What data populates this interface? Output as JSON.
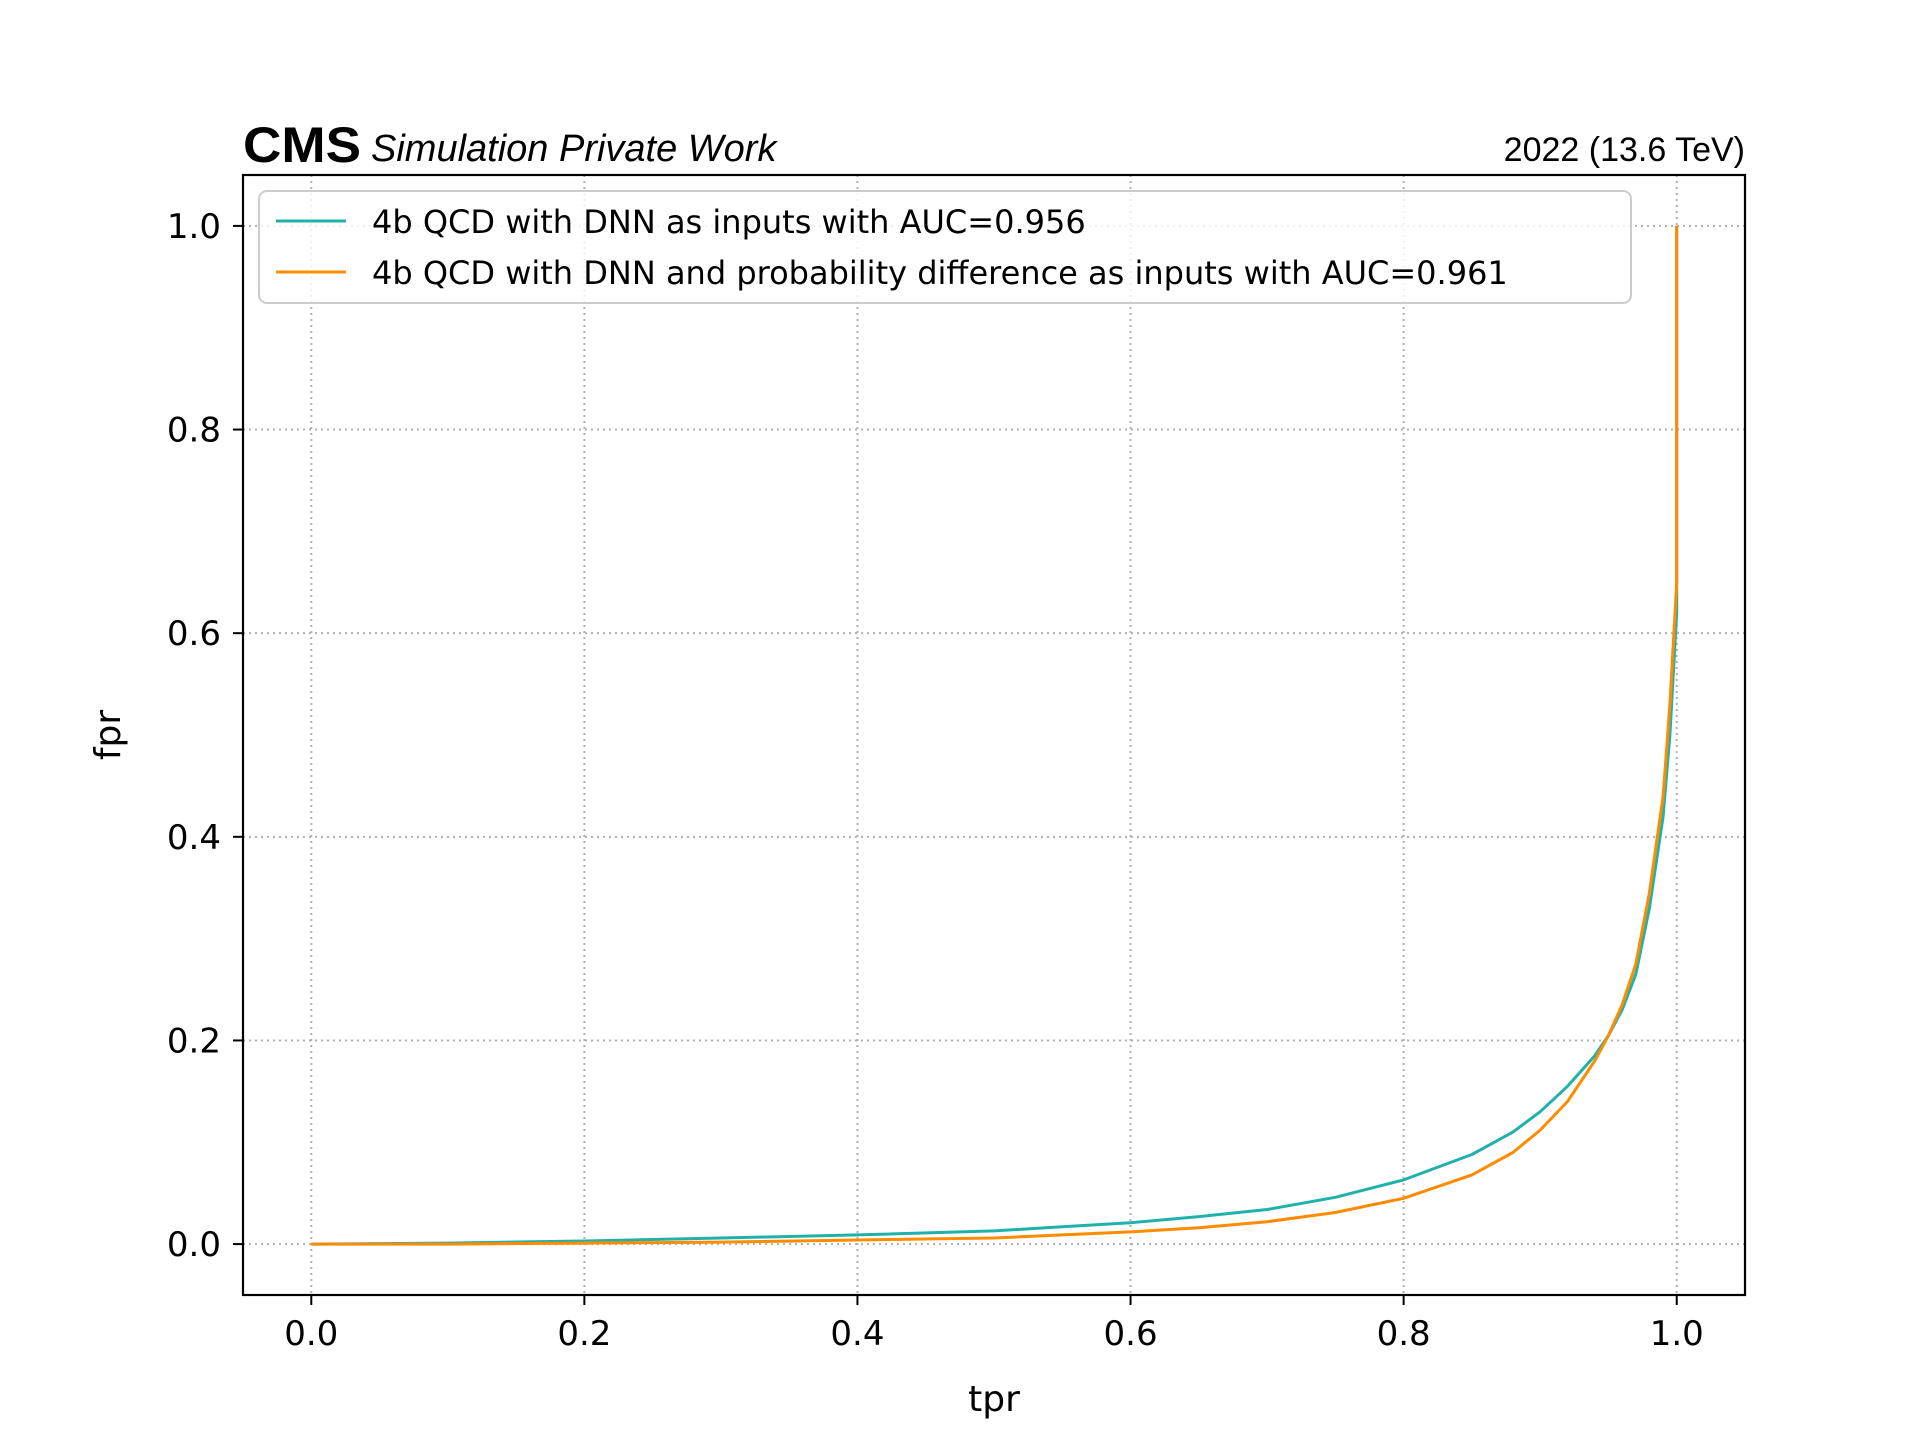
{
  "header": {
    "cms_label": "CMS",
    "extra_label": "Simulation Private Work",
    "lumi_label": "2022 (13.6 TeV)"
  },
  "chart_data": {
    "type": "line",
    "xlabel": "tpr",
    "ylabel": "fpr",
    "xlim": [
      -0.05,
      1.05
    ],
    "ylim": [
      -0.05,
      1.05
    ],
    "xticks": [
      "0.0",
      "0.2",
      "0.4",
      "0.6",
      "0.8",
      "1.0"
    ],
    "yticks": [
      "0.0",
      "0.2",
      "0.4",
      "0.6",
      "0.8",
      "1.0"
    ],
    "grid": true,
    "legend_position": "top-left",
    "series": [
      {
        "name": "4b QCD with DNN as inputs with AUC=0.956",
        "color": "#20b2aa",
        "x": [
          0.0,
          0.1,
          0.2,
          0.3,
          0.4,
          0.5,
          0.55,
          0.6,
          0.65,
          0.7,
          0.75,
          0.8,
          0.85,
          0.88,
          0.9,
          0.92,
          0.94,
          0.95,
          0.96,
          0.97,
          0.98,
          0.99,
          0.995,
          1.0,
          1.0
        ],
        "y": [
          0.0,
          0.001,
          0.003,
          0.006,
          0.009,
          0.013,
          0.017,
          0.021,
          0.027,
          0.034,
          0.046,
          0.063,
          0.088,
          0.11,
          0.13,
          0.155,
          0.185,
          0.205,
          0.23,
          0.265,
          0.33,
          0.42,
          0.5,
          0.62,
          1.0
        ]
      },
      {
        "name": "4b QCD with DNN and probability difference as inputs with AUC=0.961",
        "color": "#ff8c00",
        "x": [
          0.0,
          0.1,
          0.2,
          0.3,
          0.4,
          0.5,
          0.55,
          0.6,
          0.65,
          0.7,
          0.75,
          0.8,
          0.85,
          0.88,
          0.9,
          0.92,
          0.94,
          0.95,
          0.96,
          0.97,
          0.98,
          0.99,
          0.995,
          1.0,
          1.0
        ],
        "y": [
          0.0,
          0.0,
          0.001,
          0.002,
          0.004,
          0.006,
          0.009,
          0.012,
          0.016,
          0.022,
          0.031,
          0.045,
          0.068,
          0.09,
          0.112,
          0.14,
          0.18,
          0.205,
          0.235,
          0.275,
          0.345,
          0.44,
          0.53,
          0.65,
          1.0
        ]
      }
    ]
  }
}
